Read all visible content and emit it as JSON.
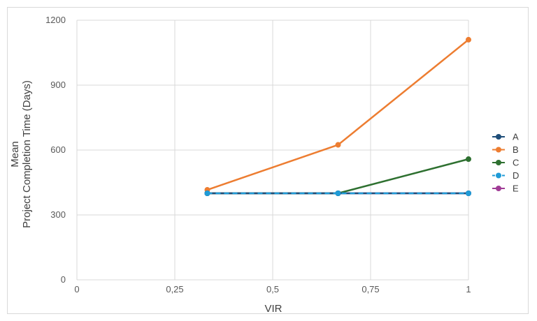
{
  "chart_data": {
    "type": "line",
    "xlabel": "VIR",
    "ylabel_lines": [
      "Mean",
      "Project  Completion Time (Days)"
    ],
    "xlim": [
      0,
      1
    ],
    "ylim": [
      0,
      1200
    ],
    "x_ticks": [
      0,
      0.25,
      0.5,
      0.75,
      1
    ],
    "x_tick_labels": [
      "0",
      "0,25",
      "0,5",
      "0,75",
      "1"
    ],
    "y_ticks": [
      0,
      300,
      600,
      900,
      1200
    ],
    "y_tick_labels": [
      "0",
      "300",
      "600",
      "900",
      "1200"
    ],
    "grid": true,
    "legend_position": "right",
    "series": [
      {
        "name": "E",
        "color": "#a03c96",
        "dash": false,
        "x": [
          0.333,
          0.667,
          1
        ],
        "y": [
          400,
          400,
          400
        ]
      },
      {
        "name": "C",
        "color": "#2e7030",
        "dash": false,
        "x": [
          0.333,
          0.667,
          1
        ],
        "y": [
          400,
          400,
          558
        ]
      },
      {
        "name": "B",
        "color": "#ed7d31",
        "dash": false,
        "x": [
          0.333,
          0.667,
          1
        ],
        "y": [
          416,
          624,
          1110
        ]
      },
      {
        "name": "A",
        "color": "#1f4e79",
        "dash": false,
        "x": [
          0.333,
          0.667,
          1
        ],
        "y": [
          400,
          400,
          400
        ]
      },
      {
        "name": "D",
        "color": "#1f9bd7",
        "dash": true,
        "x": [
          0.333,
          0.667,
          1
        ],
        "y": [
          400,
          400,
          400
        ]
      }
    ],
    "legend_order": [
      "A",
      "B",
      "C",
      "D",
      "E"
    ]
  }
}
